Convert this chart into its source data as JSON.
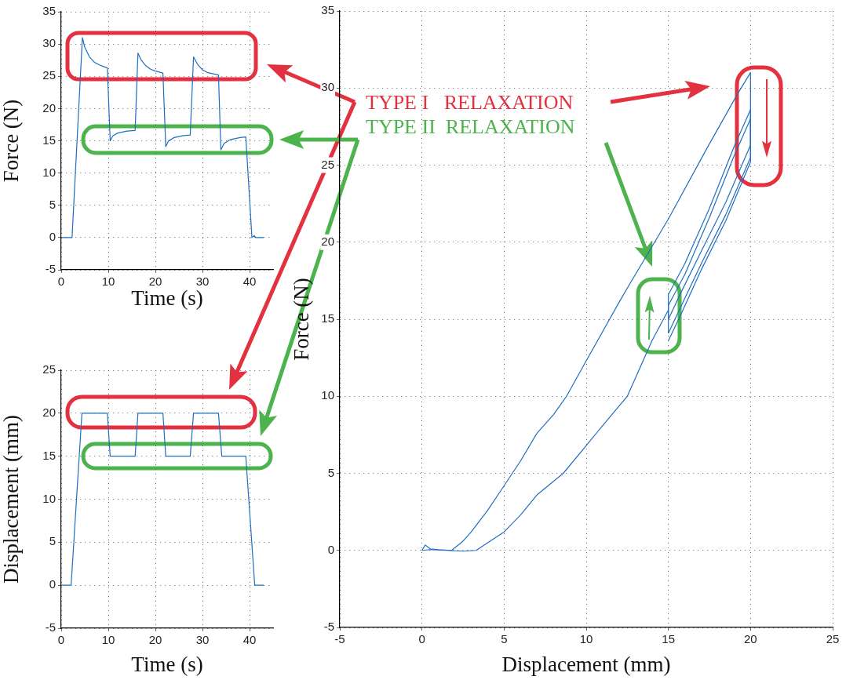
{
  "chart_data": [
    {
      "type": "line",
      "xlabel": "Time (s)",
      "ylabel": "Force (N)",
      "xlim": [
        0,
        45
      ],
      "ylim": [
        -5,
        35
      ],
      "xticks": [
        0,
        10,
        20,
        30,
        40
      ],
      "yticks": [
        -5,
        0,
        5,
        10,
        15,
        20,
        25,
        30,
        35
      ],
      "grid": true,
      "x": [
        0,
        2.3,
        4.5,
        5,
        6,
        7,
        8,
        9,
        9.8,
        10.4,
        11,
        12,
        14,
        15.7,
        16.3,
        17,
        18,
        19,
        20,
        21.6,
        22.2,
        22.8,
        24,
        26,
        27.4,
        28.1,
        29,
        30,
        31,
        33.4,
        33.9,
        34.6,
        36,
        38,
        39.2,
        40.5,
        41,
        41.3,
        43
      ],
      "series": [
        {
          "color": "#1f6fc0",
          "values": [
            0,
            0,
            31,
            29.5,
            28,
            27.2,
            26.8,
            26.5,
            26.3,
            15,
            15.8,
            16.2,
            16.5,
            16.6,
            28.6,
            27.5,
            26.6,
            26.1,
            25.8,
            25.5,
            14.1,
            15,
            15.5,
            15.8,
            15.9,
            28,
            26.8,
            26,
            25.6,
            25.2,
            13.6,
            14.6,
            15.2,
            15.5,
            15.6,
            0,
            0.3,
            0,
            0
          ]
        }
      ]
    },
    {
      "type": "line",
      "xlabel": "Time (s)",
      "ylabel": "Displacement (mm)",
      "xlim": [
        0,
        45
      ],
      "ylim": [
        -5,
        25
      ],
      "xticks": [
        0,
        10,
        20,
        30,
        40
      ],
      "yticks": [
        -5,
        0,
        5,
        10,
        15,
        20,
        25
      ],
      "grid": true,
      "x": [
        0,
        2.1,
        4.4,
        9.8,
        10.4,
        15.7,
        16.3,
        21.6,
        22.2,
        27.4,
        28.1,
        33.4,
        34.1,
        39.2,
        41.1,
        43
      ],
      "series": [
        {
          "color": "#1f6fc0",
          "values": [
            0,
            0,
            20,
            20,
            15,
            15,
            20,
            20,
            15,
            15,
            20,
            20,
            15,
            15,
            0,
            0
          ]
        }
      ]
    },
    {
      "type": "line",
      "xlabel": "Displacement (mm)",
      "ylabel": "Force (N)",
      "xlim": [
        -5,
        25
      ],
      "ylim": [
        -5,
        35
      ],
      "xticks": [
        -5,
        0,
        5,
        10,
        15,
        20,
        25
      ],
      "yticks": [
        -5,
        0,
        5,
        10,
        15,
        20,
        25,
        30,
        35
      ],
      "grid": true,
      "annotations": [
        "TYPE I   RELAXATION",
        "TYPE II  RELAXATION"
      ],
      "series": [
        {
          "color": "#1f6fc0",
          "x": [
            0,
            0.2,
            0.5,
            1,
            1.8,
            2.5,
            3,
            4,
            5,
            6,
            7,
            8,
            8.8,
            10,
            11,
            12,
            12.6,
            15,
            17.3,
            19.2,
            20
          ],
          "values": [
            0,
            0.35,
            0.1,
            0.05,
            0,
            0.6,
            1.2,
            2.6,
            4.2,
            5.8,
            7.6,
            8.8,
            10,
            12.3,
            14.2,
            16.1,
            17.2,
            21.5,
            26,
            29.6,
            31
          ]
        },
        {
          "color": "#1f6fc0",
          "x": [
            15,
            15,
            16,
            17.5,
            19,
            20
          ],
          "values": [
            15,
            16.6,
            18.6,
            22.2,
            26.2,
            28.6
          ]
        },
        {
          "color": "#1f6fc0",
          "x": [
            15,
            15,
            16,
            17.5,
            19,
            20
          ],
          "values": [
            14.1,
            15.9,
            17.9,
            21.6,
            25.6,
            28
          ]
        },
        {
          "color": "#1f6fc0",
          "x": [
            15,
            15.8,
            17,
            18.5,
            20,
            20
          ],
          "values": [
            15,
            16.8,
            19.4,
            22.6,
            26.3,
            31
          ]
        },
        {
          "color": "#1f6fc0",
          "x": [
            15,
            15.8,
            17,
            18.5,
            20,
            20
          ],
          "values": [
            14.1,
            15.9,
            18.6,
            21.8,
            25.5,
            28.6
          ]
        },
        {
          "color": "#1f6fc0",
          "x": [
            15,
            15.8,
            17,
            18.5,
            20,
            20
          ],
          "values": [
            13.6,
            15.4,
            18.2,
            21.4,
            25.2,
            28
          ]
        },
        {
          "color": "#1f6fc0",
          "x": [
            0,
            0.5,
            1.5,
            2.5,
            3.3,
            4,
            5,
            6,
            7,
            8.6,
            10,
            11,
            12.5,
            14,
            15
          ],
          "values": [
            0,
            0.05,
            0,
            -0.05,
            0,
            0.5,
            1.2,
            2.3,
            3.6,
            5,
            6.8,
            8.1,
            10,
            13.6,
            15.6
          ]
        }
      ]
    }
  ]
}
